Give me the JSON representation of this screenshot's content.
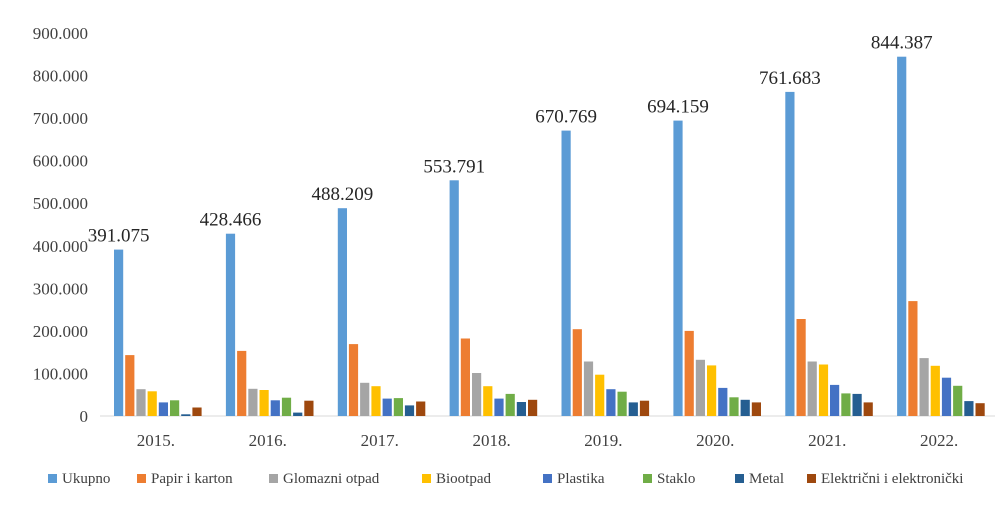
{
  "chart_data": {
    "type": "bar",
    "categories": [
      "2015.",
      "2016.",
      "2017.",
      "2018.",
      "2019.",
      "2020.",
      "2021.",
      "2022."
    ],
    "series": [
      {
        "name": "Ukupno",
        "color": "#5b9bd5",
        "values": [
          391075,
          428466,
          488209,
          553791,
          670769,
          694159,
          761683,
          844387
        ]
      },
      {
        "name": "Papir i karton",
        "color": "#ed7d31",
        "values": [
          143000,
          153000,
          169000,
          182000,
          204000,
          200000,
          228000,
          270000
        ]
      },
      {
        "name": "Glomazni otpad",
        "color": "#a5a5a5",
        "values": [
          63000,
          64000,
          78000,
          101000,
          128000,
          132000,
          128000,
          136000
        ]
      },
      {
        "name": "Biootpad",
        "color": "#ffc000",
        "values": [
          58000,
          61000,
          70000,
          70000,
          97000,
          119000,
          121000,
          118000
        ]
      },
      {
        "name": "Plastika",
        "color": "#4472c4",
        "values": [
          32000,
          37000,
          41000,
          41000,
          63000,
          66000,
          73000,
          90000
        ]
      },
      {
        "name": "Staklo",
        "color": "#70ad47",
        "values": [
          37000,
          43000,
          42000,
          52000,
          57000,
          44000,
          53000,
          71000
        ]
      },
      {
        "name": "Metal",
        "color": "#255e91",
        "values": [
          4000,
          8000,
          25000,
          33000,
          32000,
          38000,
          52000,
          35000
        ]
      },
      {
        "name": "Električni i elektronički",
        "color": "#9e480e",
        "values": [
          20000,
          36000,
          34000,
          38000,
          36000,
          32000,
          32000,
          30000
        ]
      }
    ],
    "data_labels": {
      "series": "Ukupno",
      "labels": [
        "391.075",
        "428.466",
        "488.209",
        "553.791",
        "670.769",
        "694.159",
        "761.683",
        "844.387"
      ]
    },
    "y_tick_labels": [
      "0",
      "100.000",
      "200.000",
      "300.000",
      "400.000",
      "500.000",
      "600.000",
      "700.000",
      "800.000",
      "900.000"
    ],
    "ylim": [
      0,
      900000
    ],
    "y_tick_step": 100000,
    "grid": false,
    "legend_position": "bottom",
    "title": "",
    "xlabel": "",
    "ylabel": ""
  }
}
